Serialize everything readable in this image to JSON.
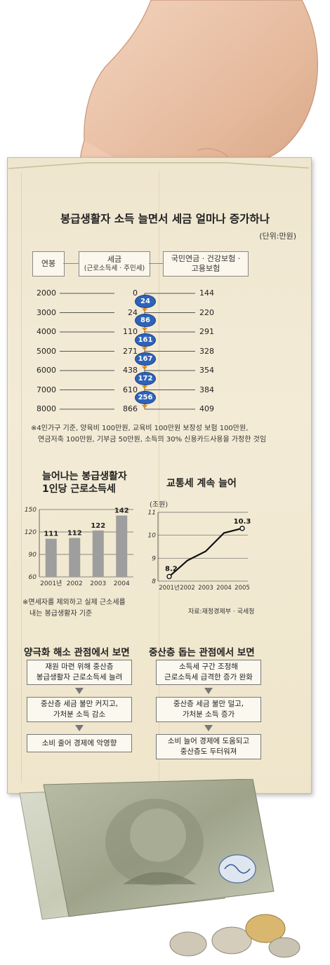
{
  "main_table": {
    "title": "봉급생활자 소득 늘면서 세금 얼마나 증가하나",
    "unit": "(단위:만원)",
    "headers": {
      "salary": "연봉",
      "tax_line1": "세금",
      "tax_line2": "(근로소득세 · 주민세)",
      "ins_line1": "국민연금 · 건강보험 ·",
      "ins_line2": "고용보험"
    },
    "rows": [
      {
        "salary": "2000",
        "tax": "0",
        "ins": "144"
      },
      {
        "salary": "3000",
        "tax": "24",
        "ins": "220"
      },
      {
        "salary": "4000",
        "tax": "110",
        "ins": "291"
      },
      {
        "salary": "5000",
        "tax": "271",
        "ins": "328"
      },
      {
        "salary": "6000",
        "tax": "438",
        "ins": "354"
      },
      {
        "salary": "7000",
        "tax": "610",
        "ins": "384"
      },
      {
        "salary": "8000",
        "tax": "866",
        "ins": "409"
      }
    ],
    "increments": [
      "24",
      "86",
      "161",
      "167",
      "172",
      "256"
    ],
    "note_line1": "※4인가구 기준, 양육비 100만원, 교육비 100만원 보장성 보험 100만원,",
    "note_line2": "연금저축 100만원, 기부금 50만원, 소득의 30% 신용카드사용을 가정한 것임"
  },
  "chart_data": [
    {
      "type": "bar",
      "title": "늘어나는 봉급생활자\n1인당 근로소득세",
      "title_line1": "늘어나는 봉급생활자",
      "title_line2": "1인당 근로소득세",
      "categories": [
        "2001년",
        "2002",
        "2003",
        "2004"
      ],
      "values": [
        111,
        112,
        122,
        142
      ],
      "value_labels": [
        "111",
        "112",
        "122",
        "142"
      ],
      "ylim": [
        60,
        150
      ],
      "yticks": [
        "150",
        "120",
        "90",
        "60"
      ],
      "grid": true,
      "note_line1": "※면세자를 제외하고 실제 근소세를",
      "note_line2": "내는 봉급생활자 기준",
      "bar_color": "#9e9e9e"
    },
    {
      "type": "line",
      "title": "교통세 계속 늘어",
      "unit": "(조원)",
      "categories": [
        "2001년",
        "2002",
        "2003",
        "2004",
        "2005"
      ],
      "values": [
        8.2,
        8.9,
        9.3,
        10.1,
        10.3
      ],
      "first_label": "8.2",
      "last_label": "10.3",
      "ylim": [
        8,
        11
      ],
      "yticks": [
        "11",
        "10",
        "9",
        "8"
      ],
      "grid": true,
      "source": "자료:재정경제부 · 국세청"
    }
  ],
  "left_flow": {
    "title": "양극화 해소 관점에서 보면",
    "boxes": [
      {
        "line1": "재원 마련 위해 중산층",
        "line2": "봉급생활자 근로소득세 늘려"
      },
      {
        "line1": "중산층 세금 불만 커지고,",
        "line2": "가처분 소득 감소"
      },
      {
        "line1": "소비 줄어 경제에 악영향",
        "line2": ""
      }
    ]
  },
  "right_flow": {
    "title": "중산층 돕는 관점에서 보면",
    "boxes": [
      {
        "line1": "소득세 구간 조정해",
        "line2": "근로소득세 급격한 증가 완화"
      },
      {
        "line1": "중산층 세금 불만 덜고,",
        "line2": "가처분 소득 증가"
      },
      {
        "line1": "소비 늘어 경제에 도움되고",
        "line2": "중산층도 두터워져"
      }
    ]
  },
  "colors": {
    "envelope": "#f1e8d1",
    "badge": "#2f63b8",
    "arrow": "#e08a1e",
    "bar": "#9e9e9e"
  },
  "icons": [
    "hand-illustration",
    "banknote-illustration",
    "coin-illustration"
  ]
}
